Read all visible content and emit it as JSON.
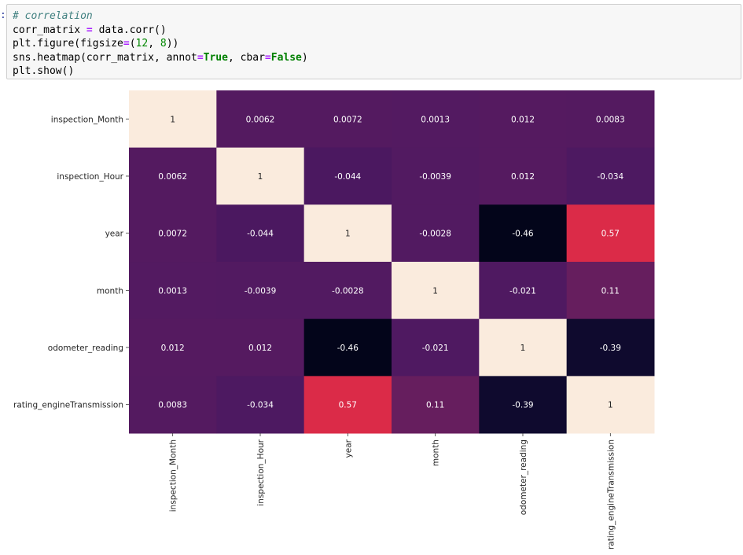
{
  "cell": {
    "prompt": ":",
    "lines": [
      {
        "parts": [
          {
            "t": "# correlation",
            "c": "cm"
          }
        ]
      },
      {
        "parts": [
          {
            "t": "corr_matrix "
          },
          {
            "t": "=",
            "c": "op"
          },
          {
            "t": " data.corr()"
          }
        ]
      },
      {
        "parts": [
          {
            "t": "plt.figure(figsize"
          },
          {
            "t": "=",
            "c": "op"
          },
          {
            "t": "("
          },
          {
            "t": "12",
            "c": "num"
          },
          {
            "t": ", "
          },
          {
            "t": "8",
            "c": "num"
          },
          {
            "t": "))"
          }
        ]
      },
      {
        "parts": [
          {
            "t": "sns.heatmap(corr_matrix, annot"
          },
          {
            "t": "=",
            "c": "op"
          },
          {
            "t": "True",
            "c": "kw"
          },
          {
            "t": ", cbar"
          },
          {
            "t": "=",
            "c": "op"
          },
          {
            "t": "False",
            "c": "kw"
          },
          {
            "t": ")"
          }
        ]
      },
      {
        "parts": [
          {
            "t": "plt.show()"
          }
        ]
      }
    ]
  },
  "chart_data": {
    "type": "heatmap",
    "categories": [
      "inspection_Month",
      "inspection_Hour",
      "year",
      "month",
      "odometer_reading",
      "rating_engineTransmission"
    ],
    "values": [
      [
        1,
        0.0062,
        0.0072,
        0.0013,
        0.012,
        0.0083
      ],
      [
        0.0062,
        1,
        -0.044,
        -0.0039,
        0.012,
        -0.034
      ],
      [
        0.0072,
        -0.044,
        1,
        -0.0028,
        -0.46,
        0.57
      ],
      [
        0.0013,
        -0.0039,
        -0.0028,
        1,
        -0.021,
        0.11
      ],
      [
        0.012,
        0.012,
        -0.46,
        -0.021,
        1,
        -0.39
      ],
      [
        0.0083,
        -0.034,
        0.57,
        0.11,
        -0.39,
        1
      ]
    ],
    "labels": [
      [
        "1",
        "0.0062",
        "0.0072",
        "0.0013",
        "0.012",
        "0.0083"
      ],
      [
        "0.0062",
        "1",
        "-0.044",
        "-0.0039",
        "0.012",
        "-0.034"
      ],
      [
        "0.0072",
        "-0.044",
        "1",
        "-0.0028",
        "-0.46",
        "0.57"
      ],
      [
        "0.0013",
        "-0.0039",
        "-0.0028",
        "1",
        "-0.021",
        "0.11"
      ],
      [
        "0.012",
        "0.012",
        "-0.46",
        "-0.021",
        "1",
        "-0.39"
      ],
      [
        "0.0083",
        "-0.034",
        "0.57",
        "0.11",
        "-0.39",
        "1"
      ]
    ],
    "vmin": -0.46,
    "vmax": 1,
    "colorbar": false,
    "title": "",
    "xlabel": "",
    "ylabel": ""
  }
}
